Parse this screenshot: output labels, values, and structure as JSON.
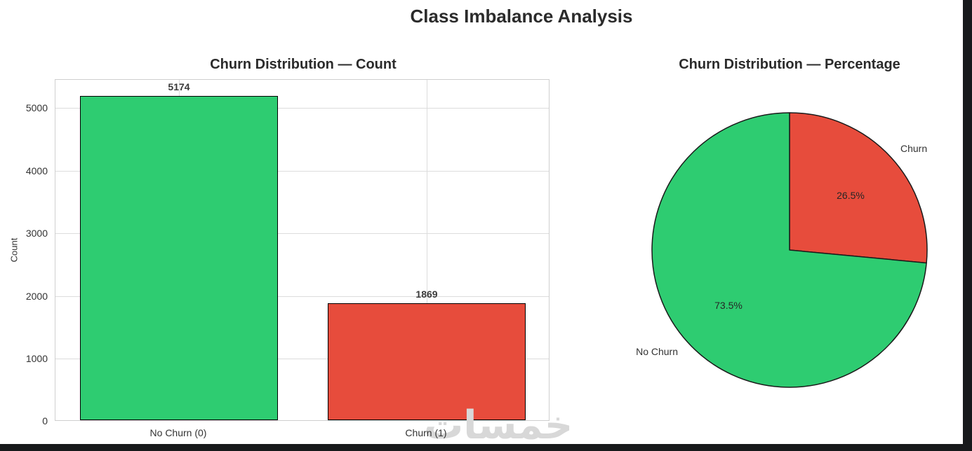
{
  "page": {
    "title": "Class Imbalance Analysis"
  },
  "watermark": {
    "text": "خمسات"
  },
  "colors": {
    "no_churn_green": "#2ecc71",
    "churn_red": "#e74c3c",
    "bar_edge": "#000000",
    "grid": "#dcdcdc",
    "frame_dark": "#17191b"
  },
  "chart_data": [
    {
      "type": "bar",
      "title": "Churn Distribution — Count",
      "categories": [
        "No Churn (0)",
        "Churn (1)"
      ],
      "values": [
        5174,
        1869
      ],
      "bar_colors": [
        "#2ecc71",
        "#e74c3c"
      ],
      "xlabel": "",
      "ylabel": "Count",
      "ylim": [
        0,
        5450
      ],
      "yticks": [
        0,
        1000,
        2000,
        3000,
        4000,
        5000
      ],
      "grid": true,
      "bar_edge_color": "#000000"
    },
    {
      "type": "pie",
      "title": "Churn Distribution — Percentage",
      "labels": [
        "Churn",
        "No Churn"
      ],
      "values": [
        26.5,
        73.5
      ],
      "pct_labels": [
        "26.5%",
        "73.5%"
      ],
      "slice_colors": [
        "#e74c3c",
        "#2ecc71"
      ],
      "start_angle": 90,
      "direction": "clockwise",
      "edge_color": "#1a1a1a"
    }
  ]
}
